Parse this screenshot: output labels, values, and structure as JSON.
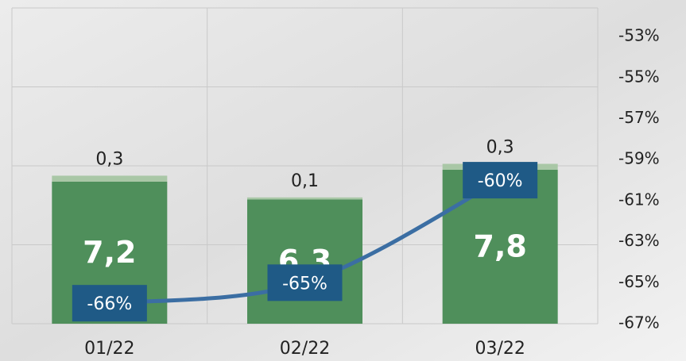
{
  "chart_data": {
    "type": "bar",
    "categories": [
      "01/22",
      "02/22",
      "03/22"
    ],
    "ylim": [
      0,
      16
    ],
    "yticks": [
      0,
      4,
      8,
      12,
      16
    ],
    "grid": true,
    "y2lim": [
      -67,
      -51.6
    ],
    "y2ticks": [
      {
        "value": -67,
        "label": "-67%"
      },
      {
        "value": -65,
        "label": "-65%"
      },
      {
        "value": -63,
        "label": "-63%"
      },
      {
        "value": -61,
        "label": "-61%"
      },
      {
        "value": -59,
        "label": "-59%"
      },
      {
        "value": -57,
        "label": "-57%"
      },
      {
        "value": -55,
        "label": "-55%"
      },
      {
        "value": -53,
        "label": "-53%"
      }
    ],
    "series": [
      {
        "type": "bar",
        "color": "#4f8f5b",
        "values": [
          7.2,
          6.3,
          7.8
        ],
        "value_labels": [
          "7,2",
          "6,3",
          "7,8"
        ]
      },
      {
        "type": "bar",
        "color": "#a9c7a6",
        "values": [
          0.3,
          0.1,
          0.3
        ],
        "value_labels": [
          "0,3",
          "0,1",
          "0,3"
        ]
      },
      {
        "type": "line",
        "axis": "y2",
        "color": "#3b6ea3",
        "label_color": "#1f5a86",
        "values": [
          -66,
          -65,
          -60
        ],
        "value_labels": [
          "-66%",
          "-65%",
          "-60%"
        ]
      }
    ]
  }
}
